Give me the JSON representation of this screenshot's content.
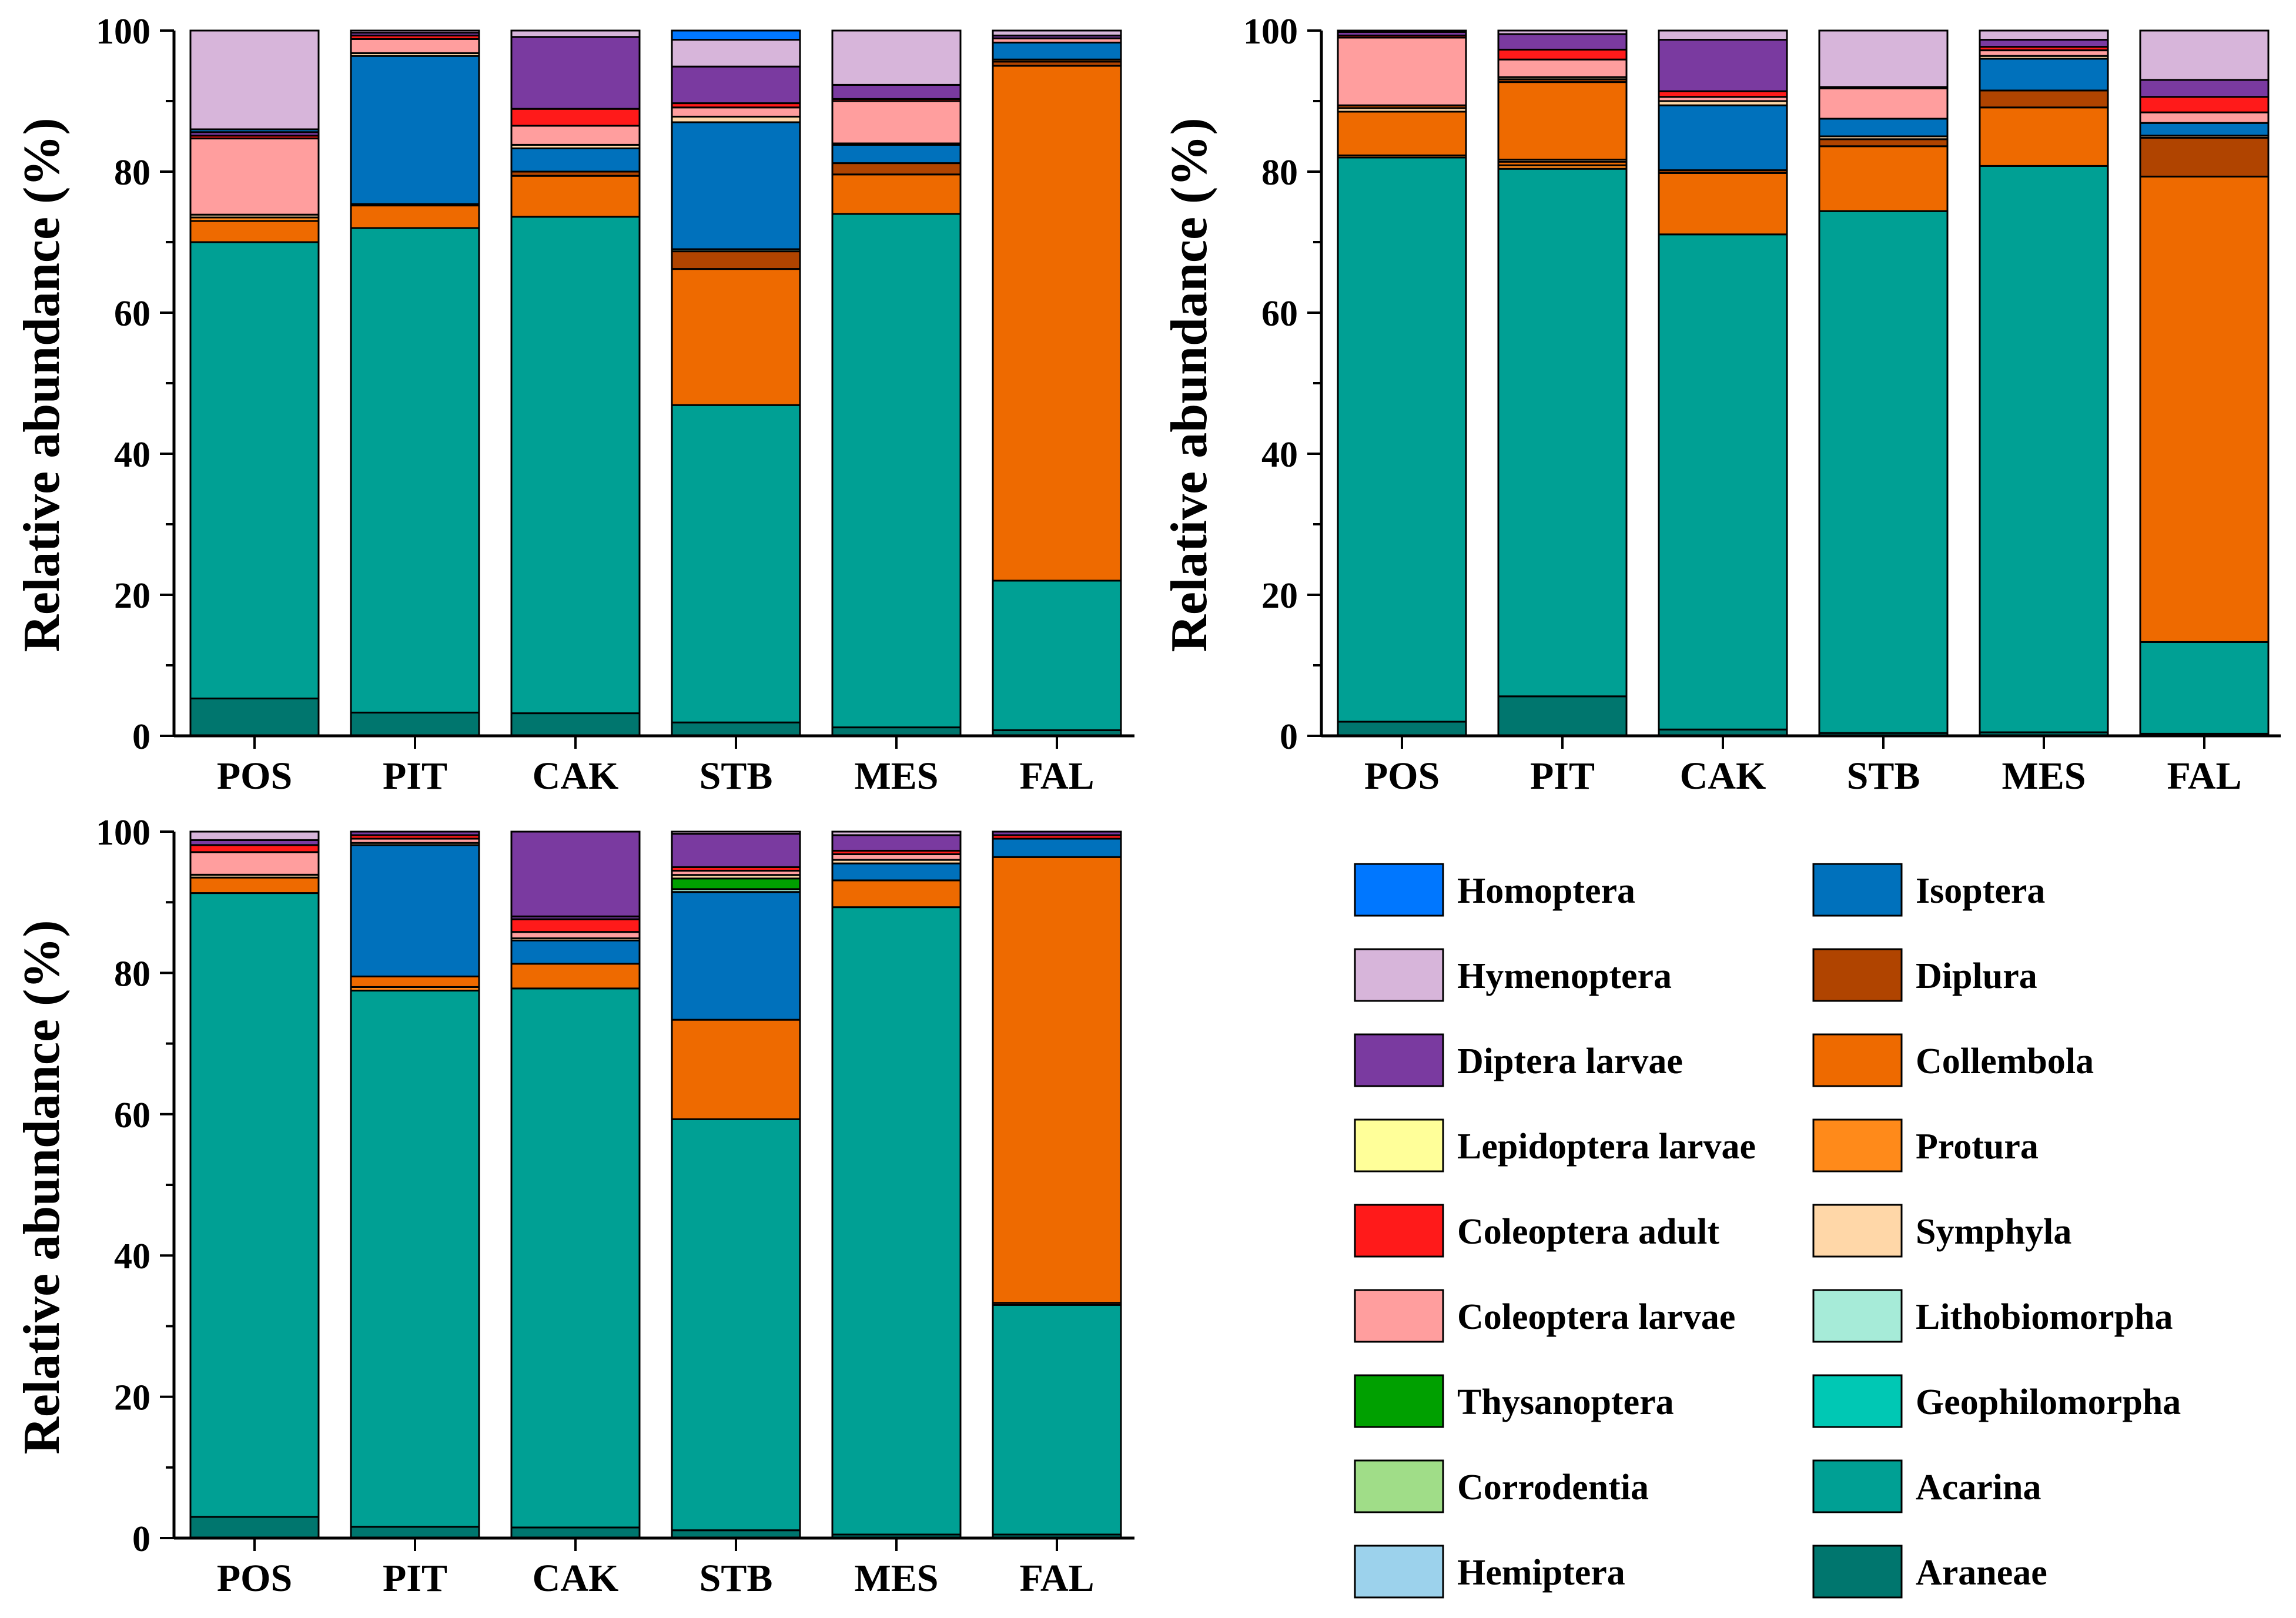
{
  "chart_data": {
    "type": "bar",
    "stacked": true,
    "categories": [
      "POS",
      "PIT",
      "CAK",
      "STB",
      "MES",
      "FAL"
    ],
    "ylabel": "Relative abundance (%)",
    "ylim": [
      0,
      100
    ],
    "yticks": [
      0,
      20,
      40,
      60,
      80,
      100
    ],
    "legend": {
      "placement": "bottom-right",
      "items": [
        {
          "name": "Homoptera",
          "color": "#0077FF"
        },
        {
          "name": "Isoptera",
          "color": "#0071BC"
        },
        {
          "name": "Hymenoptera",
          "color": "#D7B5DA"
        },
        {
          "name": "Diplura",
          "color": "#B04400"
        },
        {
          "name": "Diptera larvae",
          "color": "#7A3AA0"
        },
        {
          "name": "Collembola",
          "color": "#EE6A00"
        },
        {
          "name": "Lepidoptera larvae",
          "color": "#FFFF99"
        },
        {
          "name": "Protura",
          "color": "#FF8A1A"
        },
        {
          "name": "Coleoptera adult",
          "color": "#FF1A1A"
        },
        {
          "name": "Symphyla",
          "color": "#FFD7A8"
        },
        {
          "name": "Coleoptera larvae",
          "color": "#FF9E9E"
        },
        {
          "name": "Lithobiomorpha",
          "color": "#A6EBD8"
        },
        {
          "name": "Thysanoptera",
          "color": "#00A000"
        },
        {
          "name": "Geophilomorpha",
          "color": "#00C8B4"
        },
        {
          "name": "Corrodentia",
          "color": "#A0DD88"
        },
        {
          "name": "Acarina",
          "color": "#00A094"
        },
        {
          "name": "Hemiptera",
          "color": "#9CD2EC"
        },
        {
          "name": "Araneae",
          "color": "#00766E"
        }
      ]
    },
    "panels": [
      {
        "id": "top-left",
        "stacks": {
          "POS": [
            [
              "Araneae",
              5.3
            ],
            [
              "Acarina",
              64.7
            ],
            [
              "Collembola",
              3.0
            ],
            [
              "Protura",
              0.5
            ],
            [
              "Symphyla",
              0.4
            ],
            [
              "Coleoptera larvae",
              10.8
            ],
            [
              "Coleoptera adult",
              0.4
            ],
            [
              "Diptera larvae",
              0.5
            ],
            [
              "Isoptera",
              0.4
            ],
            [
              "Hymenoptera",
              14.0
            ]
          ],
          "PIT": [
            [
              "Araneae",
              3.3
            ],
            [
              "Acarina",
              68.7
            ],
            [
              "Collembola",
              3.2
            ],
            [
              "Protura",
              0.2
            ],
            [
              "Isoptera",
              21.0
            ],
            [
              "Symphyla",
              0.4
            ],
            [
              "Coleoptera larvae",
              2.0
            ],
            [
              "Coleoptera adult",
              0.5
            ],
            [
              "Diptera larvae",
              0.4
            ],
            [
              "Hymenoptera",
              0.3
            ]
          ],
          "CAK": [
            [
              "Araneae",
              3.2
            ],
            [
              "Acarina",
              70.4
            ],
            [
              "Collembola",
              5.8
            ],
            [
              "Diplura",
              0.6
            ],
            [
              "Isoptera",
              3.3
            ],
            [
              "Symphyla",
              0.5
            ],
            [
              "Coleoptera larvae",
              2.7
            ],
            [
              "Coleoptera adult",
              2.4
            ],
            [
              "Diptera larvae",
              10.2
            ],
            [
              "Hymenoptera",
              0.9
            ]
          ],
          "STB": [
            [
              "Araneae",
              1.9
            ],
            [
              "Acarina",
              45.0
            ],
            [
              "Collembola",
              19.3
            ],
            [
              "Diplura",
              2.5
            ],
            [
              "Lithobiomorpha",
              0.3
            ],
            [
              "Isoptera",
              18.0
            ],
            [
              "Symphyla",
              0.8
            ],
            [
              "Coleoptera larvae",
              1.3
            ],
            [
              "Coleoptera adult",
              0.6
            ],
            [
              "Diptera larvae",
              5.2
            ],
            [
              "Hymenoptera",
              3.8
            ],
            [
              "Homoptera",
              1.3
            ]
          ],
          "MES": [
            [
              "Araneae",
              1.2
            ],
            [
              "Acarina",
              72.8
            ],
            [
              "Collembola",
              5.6
            ],
            [
              "Diplura",
              1.6
            ],
            [
              "Isoptera",
              2.6
            ],
            [
              "Symphyla",
              0.2
            ],
            [
              "Coleoptera larvae",
              6.0
            ],
            [
              "Coleoptera adult",
              0.3
            ],
            [
              "Diptera larvae",
              2.0
            ],
            [
              "Hymenoptera",
              7.7
            ]
          ],
          "FAL": [
            [
              "Araneae",
              0.8
            ],
            [
              "Acarina",
              21.2
            ],
            [
              "Collembola",
              73.0
            ],
            [
              "Diplura",
              0.6
            ],
            [
              "Protura",
              0.3
            ],
            [
              "Isoptera",
              2.4
            ],
            [
              "Coleoptera larvae",
              0.6
            ],
            [
              "Diptera larvae",
              0.4
            ],
            [
              "Hymenoptera",
              0.7
            ]
          ]
        }
      },
      {
        "id": "top-right",
        "stacks": {
          "POS": [
            [
              "Araneae",
              2.0
            ],
            [
              "Acarina",
              80.0
            ],
            [
              "Protura",
              0.3
            ],
            [
              "Collembola",
              6.2
            ],
            [
              "Symphyla",
              0.5
            ],
            [
              "Diplura",
              0.4
            ],
            [
              "Coleoptera larvae",
              9.6
            ],
            [
              "Coleoptera adult",
              0.3
            ],
            [
              "Diptera larvae",
              0.5
            ],
            [
              "Hymenoptera",
              0.2
            ]
          ],
          "PIT": [
            [
              "Araneae",
              5.6
            ],
            [
              "Acarina",
              74.8
            ],
            [
              "Protura",
              0.5
            ],
            [
              "Collembola",
              0.5
            ],
            [
              "Symphyla",
              0.3
            ],
            [
              "Collembola",
              11.0
            ],
            [
              "Diplura",
              0.4
            ],
            [
              "Symphyla",
              0.3
            ],
            [
              "Coleoptera larvae",
              2.5
            ],
            [
              "Coleoptera adult",
              1.4
            ],
            [
              "Diptera larvae",
              2.2
            ],
            [
              "Hymenoptera",
              0.5
            ]
          ],
          "CAK": [
            [
              "Araneae",
              0.9
            ],
            [
              "Acarina",
              70.2
            ],
            [
              "Collembola",
              8.7
            ],
            [
              "Diplura",
              0.4
            ],
            [
              "Isoptera",
              9.2
            ],
            [
              "Symphyla",
              0.6
            ],
            [
              "Coleoptera larvae",
              0.6
            ],
            [
              "Coleoptera adult",
              0.8
            ],
            [
              "Diptera larvae",
              7.3
            ],
            [
              "Hymenoptera",
              1.3
            ]
          ],
          "STB": [
            [
              "Araneae",
              0.4
            ],
            [
              "Acarina",
              74.0
            ],
            [
              "Collembola",
              9.2
            ],
            [
              "Diplura",
              1.0
            ],
            [
              "Symphyla",
              0.4
            ],
            [
              "Isoptera",
              2.5
            ],
            [
              "Coleoptera larvae",
              4.3
            ],
            [
              "Diptera larvae",
              0.2
            ],
            [
              "Hymenoptera",
              8.0
            ]
          ],
          "MES": [
            [
              "Araneae",
              0.5
            ],
            [
              "Acarina",
              80.3
            ],
            [
              "Collembola",
              8.3
            ],
            [
              "Diplura",
              2.4
            ],
            [
              "Isoptera",
              4.5
            ],
            [
              "Symphyla",
              0.4
            ],
            [
              "Coleoptera larvae",
              0.8
            ],
            [
              "Coleoptera adult",
              0.5
            ],
            [
              "Diptera larvae",
              1.0
            ],
            [
              "Hymenoptera",
              1.3
            ]
          ],
          "FAL": [
            [
              "Araneae",
              0.3
            ],
            [
              "Acarina",
              13.0
            ],
            [
              "Collembola",
              66.0
            ],
            [
              "Diplura",
              5.5
            ],
            [
              "Symphyla",
              0.3
            ],
            [
              "Isoptera",
              1.8
            ],
            [
              "Coleoptera larvae",
              1.5
            ],
            [
              "Coleoptera adult",
              2.2
            ],
            [
              "Diptera larvae",
              2.4
            ],
            [
              "Hymenoptera",
              7.0
            ]
          ]
        }
      },
      {
        "id": "bottom-left",
        "stacks": {
          "POS": [
            [
              "Araneae",
              3.0
            ],
            [
              "Acarina",
              88.3
            ],
            [
              "Collembola",
              2.2
            ],
            [
              "Symphyla",
              0.4
            ],
            [
              "Coleoptera larvae",
              3.2
            ],
            [
              "Coleoptera adult",
              1.0
            ],
            [
              "Diptera larvae",
              0.7
            ],
            [
              "Hymenoptera",
              1.2
            ]
          ],
          "PIT": [
            [
              "Araneae",
              1.6
            ],
            [
              "Acarina",
              75.9
            ],
            [
              "Protura",
              0.5
            ],
            [
              "Collembola",
              1.5
            ],
            [
              "Isoptera",
              18.6
            ],
            [
              "Symphyla",
              0.3
            ],
            [
              "Coleoptera larvae",
              0.6
            ],
            [
              "Coleoptera adult",
              0.5
            ],
            [
              "Diptera larvae",
              0.5
            ]
          ],
          "CAK": [
            [
              "Araneae",
              1.5
            ],
            [
              "Acarina",
              76.3
            ],
            [
              "Collembola",
              3.5
            ],
            [
              "Isoptera",
              3.3
            ],
            [
              "Symphyla",
              0.3
            ],
            [
              "Coleoptera larvae",
              0.9
            ],
            [
              "Coleoptera adult",
              1.8
            ],
            [
              "Diptera larvae",
              0.4
            ],
            [
              "Diptera larvae",
              12.0
            ]
          ],
          "STB": [
            [
              "Araneae",
              1.1
            ],
            [
              "Acarina",
              57.9
            ],
            [
              "Collembola",
              14.0
            ],
            [
              "Isoptera",
              18.0
            ],
            [
              "Lithobiomorpha",
              0.4
            ],
            [
              "Thysanoptera",
              1.5
            ],
            [
              "Symphyla",
              0.5
            ],
            [
              "Coleoptera larvae",
              0.6
            ],
            [
              "Coleoptera adult",
              0.5
            ],
            [
              "Diptera larvae",
              4.7
            ],
            [
              "Hymenoptera",
              0.3
            ]
          ],
          "MES": [
            [
              "Araneae",
              0.5
            ],
            [
              "Acarina",
              88.8
            ],
            [
              "Collembola",
              3.8
            ],
            [
              "Isoptera",
              2.4
            ],
            [
              "Symphyla",
              0.5
            ],
            [
              "Coleoptera larvae",
              0.8
            ],
            [
              "Coleoptera adult",
              0.5
            ],
            [
              "Diptera larvae",
              2.2
            ],
            [
              "Hymenoptera",
              0.5
            ]
          ],
          "FAL": [
            [
              "Araneae",
              0.5
            ],
            [
              "Acarina",
              32.5
            ],
            [
              "Diplura",
              0.3
            ],
            [
              "Collembola",
              63.1
            ],
            [
              "Isoptera",
              2.6
            ],
            [
              "Coleoptera adult",
              0.5
            ],
            [
              "Diptera larvae",
              0.5
            ]
          ]
        }
      }
    ]
  }
}
